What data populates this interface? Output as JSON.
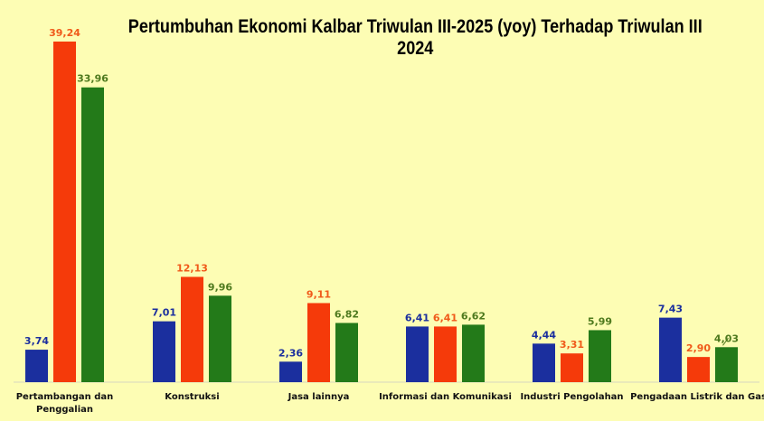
{
  "chart_data": {
    "type": "bar",
    "title": "Pertumbuhan Ekonomi Kalbar Triwulan III-2025 (yoy) Terhadap Triwulan III 2024",
    "categories": [
      [
        "Pertambangan dan",
        "Penggalian"
      ],
      [
        "Konstruksi"
      ],
      [
        "Jasa lainnya"
      ],
      [
        "Informasi dan Komunikasi"
      ],
      [
        "Industri Pengolahan"
      ],
      [
        "Pengadaan Listrik dan Gas"
      ]
    ],
    "series": [
      {
        "color": "#1b2f9e",
        "values": [
          3.74,
          7.01,
          2.36,
          6.41,
          4.44,
          7.43
        ],
        "labels": [
          "3,74",
          "7,01",
          "2,36",
          "6,41",
          "4,44",
          "7,43"
        ]
      },
      {
        "color": "#f53a0a",
        "values": [
          39.24,
          12.13,
          9.11,
          6.41,
          3.31,
          2.9
        ],
        "labels": [
          "39,24",
          "12,13",
          "9,11",
          "6,41",
          "3,31",
          "2,90"
        ]
      },
      {
        "color": "#237a19",
        "values": [
          33.96,
          9.96,
          6.82,
          6.62,
          5.99,
          4.03
        ],
        "labels": [
          "33,96",
          "9,96",
          "6,82",
          "6,62",
          "5,99",
          "4,03"
        ]
      }
    ],
    "label_colors": [
      "#1b2f9e",
      "#f05a1a",
      "#4e7a1e"
    ],
    "ylim": [
      0,
      39.24
    ],
    "grid": false,
    "legend": "none"
  }
}
